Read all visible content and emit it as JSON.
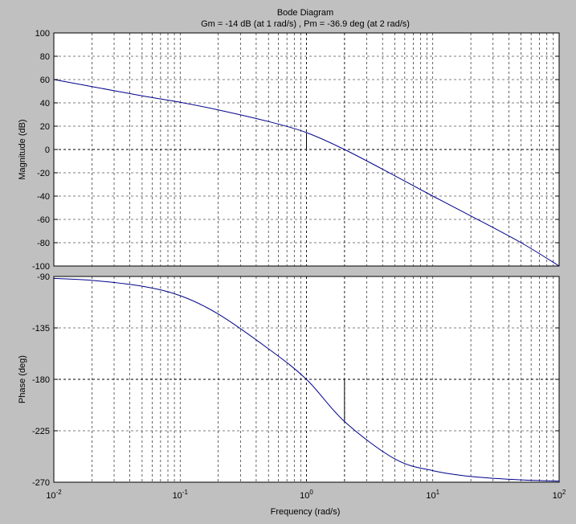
{
  "title": "Bode Diagram",
  "subtitle": "Gm = -14 dB (at 1 rad/s) ,  Pm = -36.9 deg (at 2 rad/s)",
  "xlabel": "Frequency  (rad/s)",
  "colors": {
    "figure_bg": "#c0c0c0",
    "axes_bg": "#ffffff",
    "curve": "#00008b",
    "grid": "#000000",
    "margin_marker": "#000000"
  },
  "chart_data": [
    {
      "type": "line",
      "name": "magnitude",
      "ylabel": "Magnitude (dB)",
      "x_scale": "log",
      "xlim": [
        0.01,
        100
      ],
      "ylim": [
        -100,
        100
      ],
      "yticks": [
        -100,
        -80,
        -60,
        -40,
        -20,
        0,
        20,
        40,
        60,
        80,
        100
      ],
      "grid": true,
      "x": [
        0.01,
        0.02,
        0.05,
        0.1,
        0.2,
        0.5,
        1,
        2,
        5,
        10,
        20,
        50,
        100
      ],
      "y": [
        60,
        54,
        46,
        40.5,
        34,
        24,
        14.5,
        0,
        -22.5,
        -40,
        -57,
        -80,
        -100
      ],
      "gain_margin": {
        "value_db": -14,
        "frequency": 1
      }
    },
    {
      "type": "line",
      "name": "phase",
      "ylabel": "Phase (deg)",
      "x_scale": "log",
      "xlim": [
        0.01,
        100
      ],
      "ylim": [
        -270,
        -90
      ],
      "yticks": [
        -270,
        -225,
        -180,
        -135,
        -90
      ],
      "grid": true,
      "x": [
        0.01,
        0.02,
        0.05,
        0.1,
        0.2,
        0.5,
        1,
        2,
        5,
        10,
        20,
        50,
        100
      ],
      "y": [
        -91.7,
        -93.4,
        -98.5,
        -106.8,
        -122.8,
        -153.3,
        -180,
        -216.9,
        -249.6,
        -259.9,
        -265,
        -268,
        -269
      ],
      "phase_margin": {
        "value_deg": -36.9,
        "frequency": 2
      }
    }
  ],
  "xticks": [
    {
      "value": 0.01,
      "base": "10",
      "exp": "-2"
    },
    {
      "value": 0.1,
      "base": "10",
      "exp": "-1"
    },
    {
      "value": 1,
      "base": "10",
      "exp": "0"
    },
    {
      "value": 10,
      "base": "10",
      "exp": "1"
    },
    {
      "value": 100,
      "base": "10",
      "exp": "2"
    }
  ]
}
